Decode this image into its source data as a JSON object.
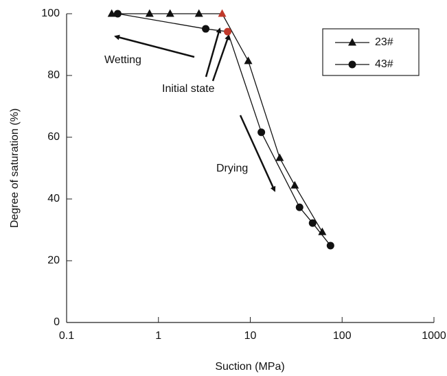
{
  "chart_data": {
    "type": "line",
    "x_label": "Suction (MPa)",
    "y_label": "Degree of saturation  (%)",
    "xscale": "log",
    "xlim": [
      0.1,
      1000
    ],
    "xticks": [
      0.1,
      1,
      10,
      100,
      1000
    ],
    "ylim": [
      0,
      100
    ],
    "yticks": [
      0,
      20,
      40,
      60,
      80,
      100
    ],
    "legend": "upper right",
    "series": [
      {
        "name": "23#",
        "color": "#111111",
        "marker": "triangle",
        "x": [
          0.31,
          0.8,
          1.34,
          2.76,
          4.94,
          9.5,
          20.9,
          30.5,
          60.8
        ],
        "values": [
          100,
          100,
          100,
          100,
          100,
          84.7,
          53.3,
          44.4,
          29.3
        ],
        "marker_colors": [
          "#111111",
          "#111111",
          "#111111",
          "#111111",
          "#c0392b",
          "#111111",
          "#111111",
          "#111111",
          "#111111"
        ]
      },
      {
        "name": "43#",
        "color": "#111111",
        "marker": "circle",
        "x": [
          0.36,
          3.27,
          5.67,
          13.2,
          34.4,
          47.7,
          74.7
        ],
        "values": [
          100,
          95.1,
          94.2,
          61.6,
          37.3,
          32.2,
          24.9
        ],
        "marker_colors": [
          "#111111",
          "#111111",
          "#c0392b",
          "#111111",
          "#111111",
          "#111111",
          "#111111"
        ]
      }
    ],
    "annotations": [
      {
        "text": "Wetting",
        "color": "#b03a2e"
      },
      {
        "text": "Initial state",
        "color": "#111111"
      },
      {
        "text": "Drying",
        "color": "#b03a2e"
      }
    ]
  }
}
